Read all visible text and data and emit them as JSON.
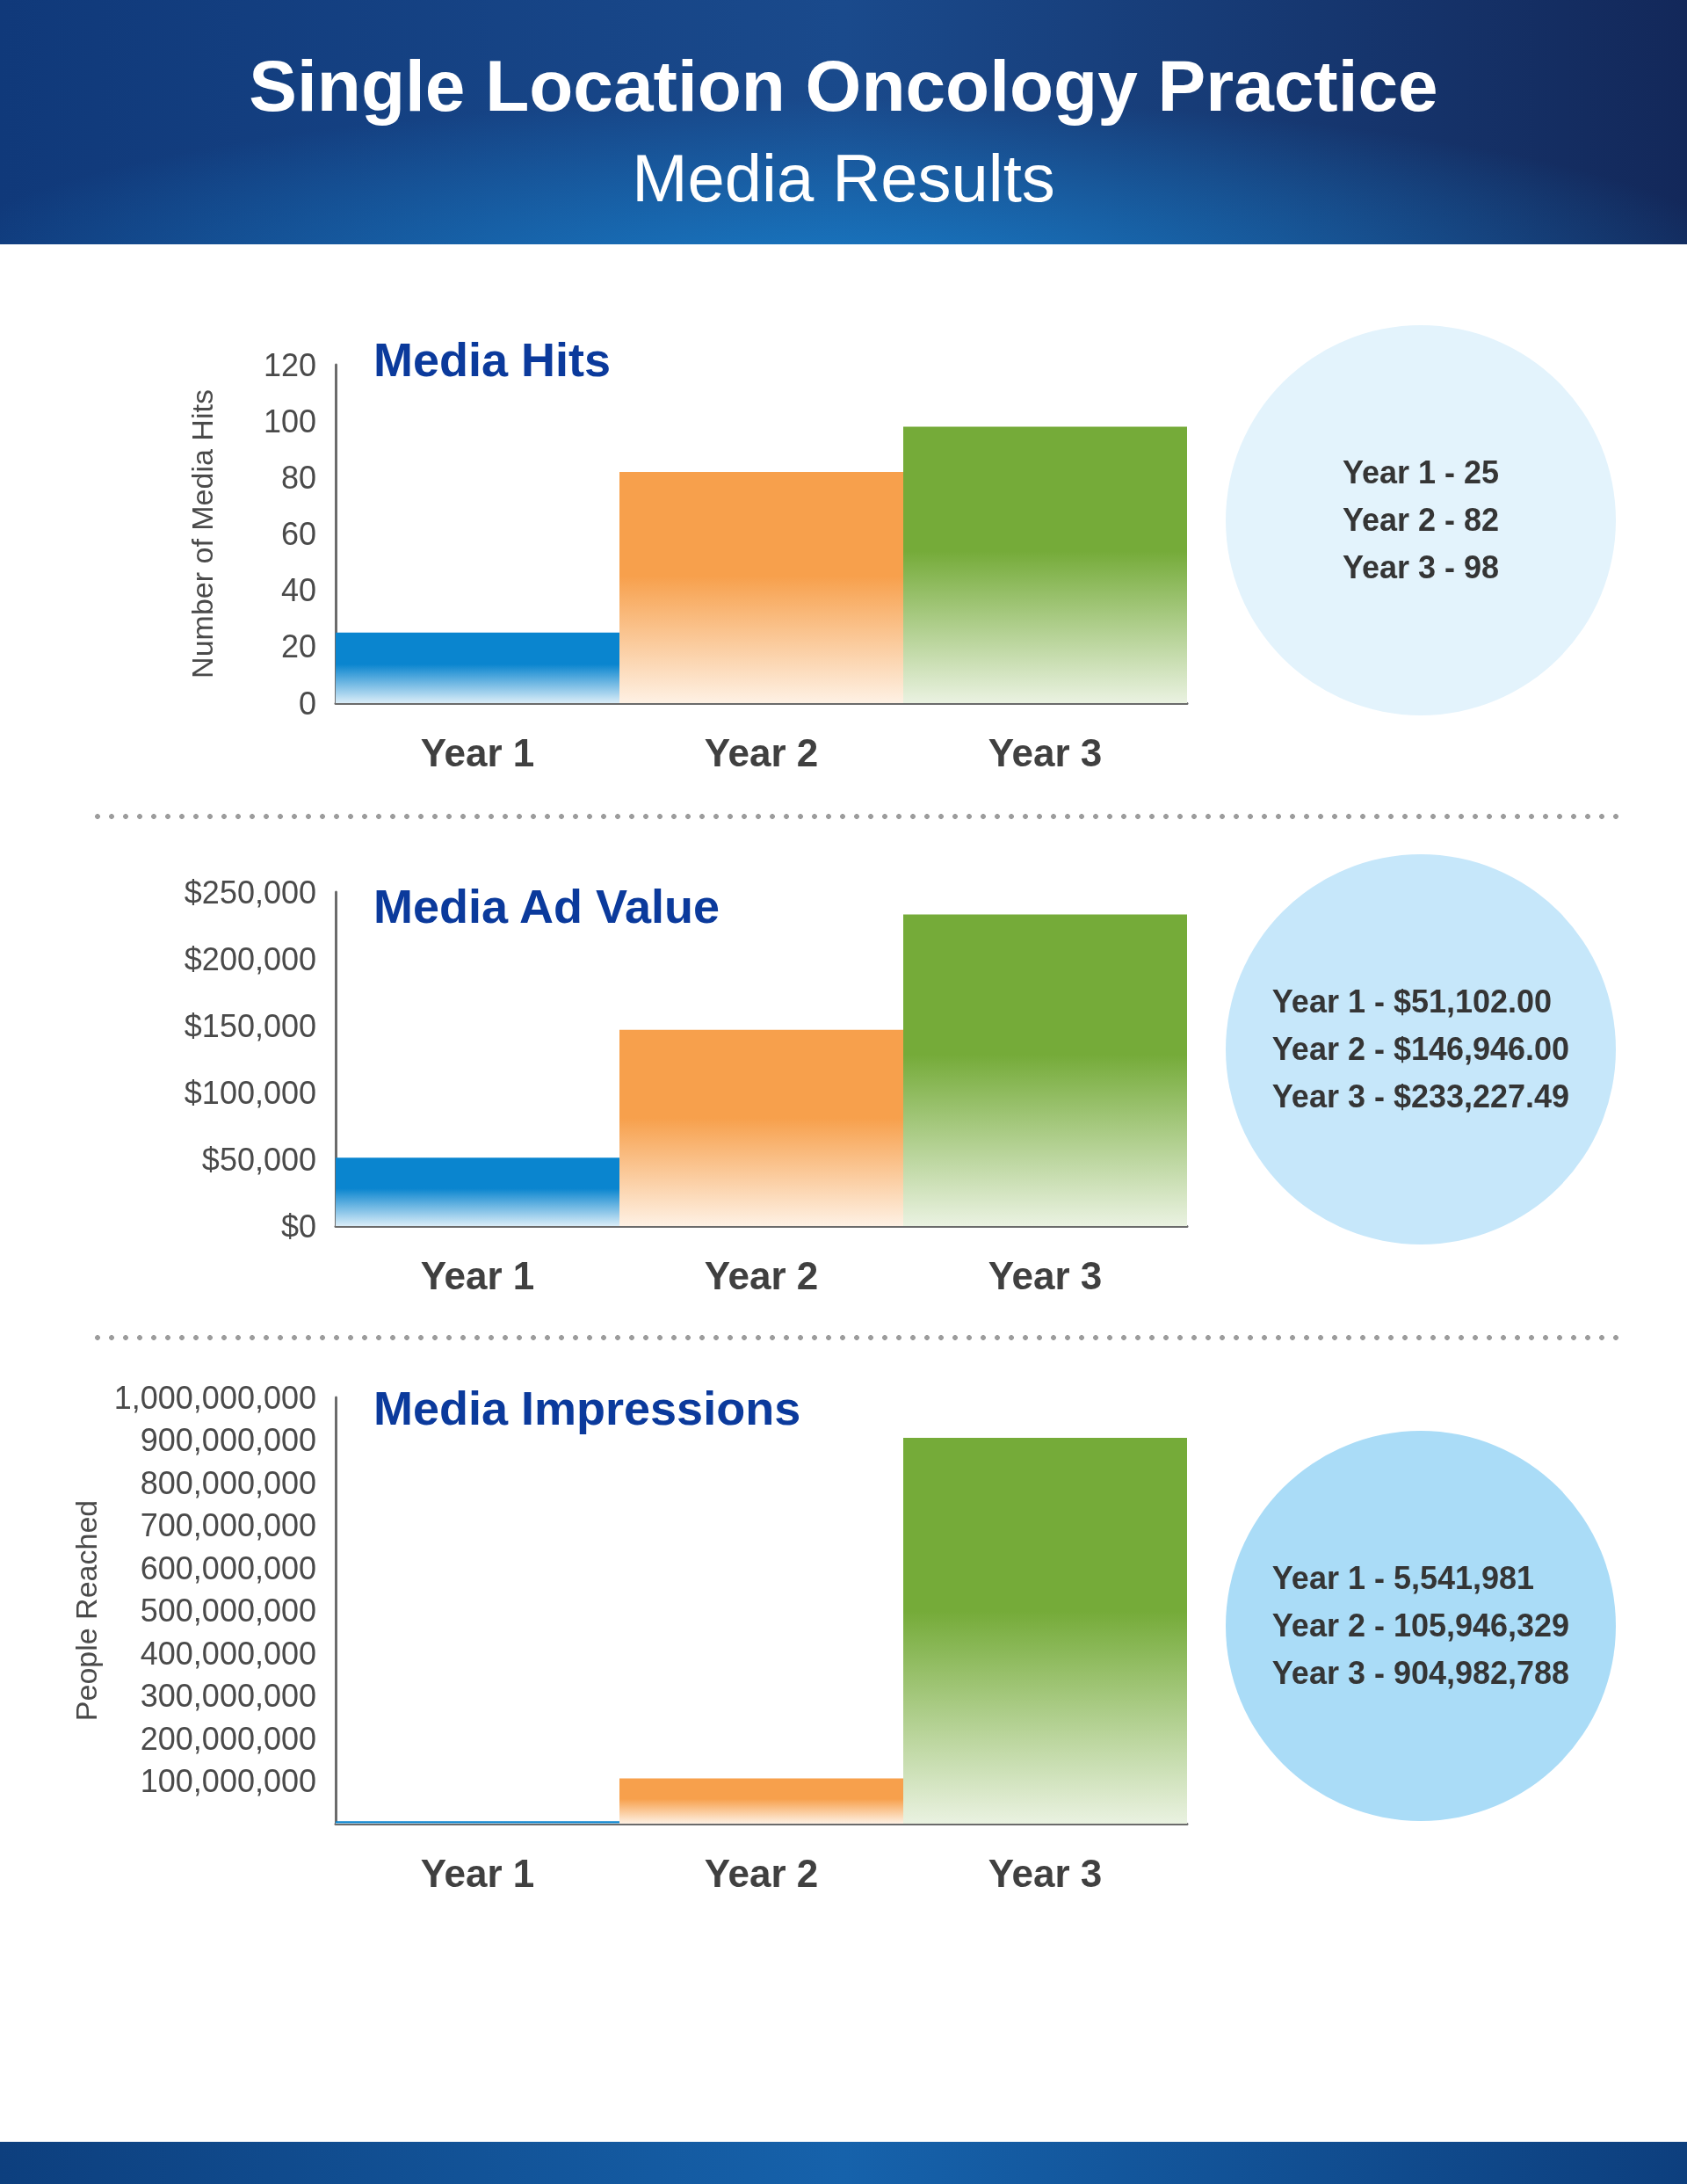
{
  "chart_data": [
    {
      "type": "other",
      "title": "Single Location Oncology Practice",
      "subtitle": "Media Results"
    },
    {
      "type": "bar",
      "title": "Media Hits",
      "ylabel": "Number of Media Hits",
      "categories": [
        "Year 1",
        "Year 2",
        "Year 3"
      ],
      "values": [
        25,
        82,
        98
      ],
      "colors": [
        "#0a85cf",
        "#f7a04c",
        "#75ab39"
      ],
      "ylim": [
        0,
        120
      ],
      "yticks": [
        0,
        20,
        40,
        60,
        80,
        100,
        120
      ],
      "annotations": [
        "Year 1 - 25",
        "Year 2 - 82",
        "Year 3 - 98"
      ]
    },
    {
      "type": "bar",
      "title": "Media Ad Value",
      "categories": [
        "Year 1",
        "Year 2",
        "Year 3"
      ],
      "values": [
        51102.0,
        146946.0,
        233227.49
      ],
      "colors": [
        "#0a85cf",
        "#f7a04c",
        "#75ab39"
      ],
      "ylim": [
        0,
        250000
      ],
      "yticks": [
        {
          "value": 0,
          "label": "$0"
        },
        {
          "value": 50000,
          "label": "$50,000"
        },
        {
          "value": 100000,
          "label": "$100,000"
        },
        {
          "value": 150000,
          "label": "$150,000"
        },
        {
          "value": 200000,
          "label": "$200,000"
        },
        {
          "value": 250000,
          "label": "$250,000"
        }
      ],
      "annotations": [
        "Year 1 - $51,102.00",
        "Year 2 - $146,946.00",
        "Year 3 - $233,227.49"
      ]
    },
    {
      "type": "bar",
      "title": "Media Impressions",
      "ylabel": "People Reached",
      "categories": [
        "Year 1",
        "Year 2",
        "Year 3"
      ],
      "values": [
        5541981,
        105946329,
        904982788
      ],
      "colors": [
        "#0a85cf",
        "#f7a04c",
        "#75ab39"
      ],
      "ylim": [
        0,
        1000000000
      ],
      "yticks": [
        {
          "value": 100000000,
          "label": "100,000,000"
        },
        {
          "value": 200000000,
          "label": "200,000,000"
        },
        {
          "value": 300000000,
          "label": "300,000,000"
        },
        {
          "value": 400000000,
          "label": "400,000,000"
        },
        {
          "value": 500000000,
          "label": "500,000,000"
        },
        {
          "value": 600000000,
          "label": "600,000,000"
        },
        {
          "value": 700000000,
          "label": "700,000,000"
        },
        {
          "value": 800000000,
          "label": "800,000,000"
        },
        {
          "value": 900000000,
          "label": "900,000,000"
        },
        {
          "value": 1000000000,
          "label": "1,000,000,000"
        }
      ],
      "annotations": [
        "Year 1 - 5,541,981",
        "Year 2 - 105,946,329",
        "Year 3 - 904,982,788"
      ]
    }
  ]
}
